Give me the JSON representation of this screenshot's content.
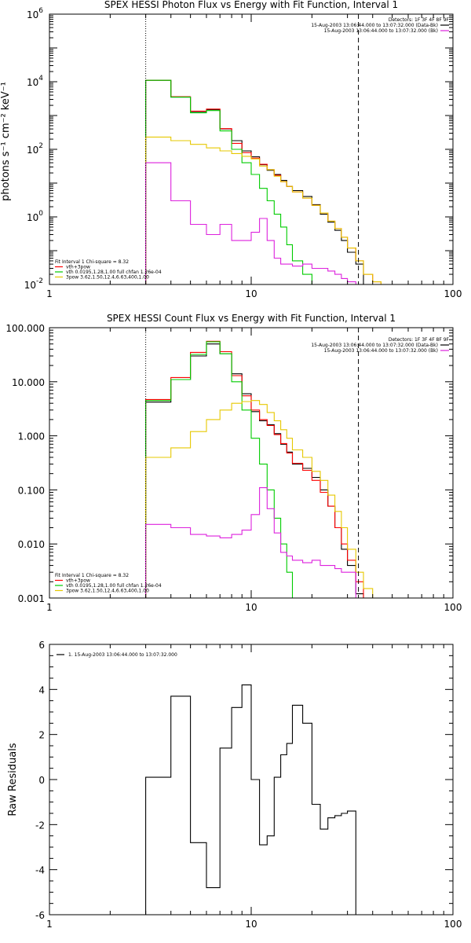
{
  "chart_data": [
    {
      "type": "line",
      "title": "SPEX HESSI Photon Flux vs Energy with Fit Function, Interval 1",
      "ylabel": "photons s⁻¹ cm⁻² keV⁻¹",
      "xlabel": "",
      "x_scale": "log",
      "y_scale": "log",
      "xlim": [
        1,
        100
      ],
      "ylim": [
        0.01,
        1000000
      ],
      "x_ticks": [
        "1",
        "10",
        "100"
      ],
      "y_ticks": [
        {
          "value": 0.01,
          "base": "10",
          "exp": "-2"
        },
        {
          "value": 1,
          "base": "10",
          "exp": "0"
        },
        {
          "value": 100,
          "base": "10",
          "exp": "2"
        },
        {
          "value": 10000,
          "base": "10",
          "exp": "4"
        },
        {
          "value": 1000000,
          "base": "10",
          "exp": "6"
        }
      ],
      "vlines": [
        {
          "x": 3,
          "style": "dotted"
        },
        {
          "x": 34,
          "style": "dashed"
        }
      ],
      "header_text": [
        "Detectors: 1F 3F 4F 8F 9F",
        "15-Aug-2003 13:06:44.000 to 13:07:32.000 (Data-Bk)",
        "15-Aug-2003 13:06:44.000 to 13:07:32.000 (Bk)"
      ],
      "header_colors": [
        "#000000",
        "#000000",
        "#dd22dd"
      ],
      "legend_text": [
        "Fit Interval 1    Chi-square = 8.32",
        "vth+3pow",
        "vth 0.0195,1.28,1.00  full chfan 1.26e-04",
        "3pow 3.62,1.50,12.4,6.63,400,1.00"
      ],
      "legend_colors": [
        "#000000",
        "#ff0000",
        "#00cc00",
        "#e6c800"
      ],
      "edges": [
        3,
        4,
        5,
        6,
        7,
        8,
        9,
        10,
        11,
        12,
        13,
        14,
        15,
        16,
        18,
        20,
        22,
        24,
        26,
        28,
        30,
        33,
        36,
        40,
        44
      ],
      "series": [
        {
          "color": "#000000",
          "values": [
            11000,
            3500,
            1300,
            1500,
            400,
            180,
            90,
            60,
            35,
            24,
            18,
            12,
            8,
            6,
            4,
            2.3,
            1.2,
            0.7,
            0.4,
            0.2,
            0.09,
            0.04,
            null,
            null
          ]
        },
        {
          "color": "#ff0000",
          "values": [
            11000,
            3600,
            1350,
            1550,
            410,
            150,
            80,
            55,
            36,
            25,
            17,
            11,
            8,
            5.5,
            3.6,
            2.2,
            1.3,
            0.75,
            0.45,
            0.25,
            0.12,
            0.05,
            0.02,
            0.012
          ]
        },
        {
          "color": "#00cc00",
          "values": [
            11000,
            3500,
            1200,
            1400,
            350,
            100,
            40,
            18,
            7,
            3,
            1.2,
            0.5,
            0.15,
            0.05,
            0.02,
            null,
            null,
            null,
            null,
            null,
            null,
            null,
            null,
            null
          ]
        },
        {
          "color": "#e6c800",
          "values": [
            230,
            180,
            140,
            110,
            90,
            75,
            62,
            52,
            32,
            25,
            16,
            11,
            8,
            5.5,
            3.6,
            2.2,
            1.3,
            0.75,
            0.45,
            0.25,
            0.12,
            0.05,
            0.02,
            0.012
          ]
        },
        {
          "color": "#dd22dd",
          "values": [
            40,
            3,
            0.6,
            0.3,
            0.6,
            0.2,
            0.2,
            0.35,
            0.9,
            0.2,
            0.06,
            0.04,
            0.04,
            0.035,
            0.04,
            0.03,
            0.03,
            0.025,
            0.02,
            0.015,
            0.012,
            null,
            null,
            null
          ]
        }
      ]
    },
    {
      "type": "line",
      "title": "SPEX HESSI Count Flux vs Energy with Fit Function, Interval 1",
      "ylabel": "",
      "xlabel": "",
      "x_scale": "log",
      "y_scale": "log",
      "xlim": [
        1,
        100
      ],
      "ylim": [
        0.001,
        100
      ],
      "x_ticks": [
        "1",
        "10",
        "100"
      ],
      "y_ticks": [
        {
          "value": 0.001,
          "label": "0.001"
        },
        {
          "value": 0.01,
          "label": "0.010"
        },
        {
          "value": 0.1,
          "label": "0.100"
        },
        {
          "value": 1,
          "label": "1.000"
        },
        {
          "value": 10,
          "label": "10.000"
        },
        {
          "value": 100,
          "label": "100.000"
        }
      ],
      "vlines": [
        {
          "x": 3,
          "style": "dotted"
        },
        {
          "x": 34,
          "style": "dashed"
        }
      ],
      "header_text": [
        "Detectors: 1F 3F 4F 8F 9F",
        "15-Aug-2003 13:06:44.000 to 13:07:32.000 (Data-Bk)",
        "15-Aug-2003 13:06:44.000 to 13:07:32.000 (Bk)"
      ],
      "header_colors": [
        "#000000",
        "#000000",
        "#dd22dd"
      ],
      "legend_text": [
        "Fit Interval 1    Chi-square = 8.32",
        "vth+3pow",
        "vth 0.0195,1.28,1.00  full chfan 1.26e-04",
        "3pow 3.62,1.50,12.4,6.63,400,1.00"
      ],
      "legend_colors": [
        "#000000",
        "#ff0000",
        "#00cc00",
        "#e6c800"
      ],
      "edges": [
        3,
        4,
        5,
        6,
        7,
        8,
        9,
        10,
        11,
        12,
        13,
        14,
        15,
        16,
        18,
        20,
        22,
        24,
        26,
        28,
        30,
        33,
        36,
        40,
        44
      ],
      "series": [
        {
          "color": "#000000",
          "values": [
            4.2,
            11,
            30,
            50,
            33,
            14,
            6,
            2.8,
            1.9,
            1.6,
            1.1,
            0.7,
            0.5,
            0.3,
            0.25,
            0.17,
            0.1,
            0.05,
            0.02,
            0.008,
            0.004,
            0.0012,
            null,
            null
          ]
        },
        {
          "color": "#ff0000",
          "values": [
            4.7,
            12,
            35,
            56,
            36,
            13,
            5.5,
            3,
            2,
            1.55,
            1.05,
            0.72,
            0.48,
            0.31,
            0.23,
            0.15,
            0.09,
            0.05,
            0.02,
            0.01,
            0.005,
            0.002,
            0.001,
            null
          ]
        },
        {
          "color": "#00cc00",
          "values": [
            4.5,
            11,
            32,
            55,
            33,
            10,
            3,
            0.9,
            0.3,
            0.1,
            0.03,
            0.01,
            0.003,
            0.001,
            null,
            null,
            null,
            null,
            null,
            null,
            null,
            null,
            null,
            null
          ]
        },
        {
          "color": "#e6c800",
          "values": [
            0.4,
            0.6,
            1.2,
            2,
            3,
            4,
            4.3,
            4.5,
            3.8,
            2.7,
            1.9,
            1.3,
            0.9,
            0.55,
            0.4,
            0.22,
            0.15,
            0.08,
            0.04,
            0.02,
            0.008,
            0.003,
            0.0015,
            null
          ]
        },
        {
          "color": "#dd22dd",
          "values": [
            0.023,
            0.02,
            0.015,
            0.014,
            0.013,
            0.015,
            0.018,
            0.035,
            0.11,
            0.045,
            0.016,
            0.007,
            0.006,
            0.005,
            0.0045,
            0.005,
            0.004,
            0.004,
            0.0035,
            0.003,
            0.003,
            null,
            null,
            null
          ]
        }
      ]
    },
    {
      "type": "line",
      "title": "",
      "ylabel": "Raw Residuals",
      "xlabel": "",
      "x_scale": "log",
      "y_scale": "linear",
      "xlim": [
        1,
        100
      ],
      "ylim": [
        -6,
        6
      ],
      "x_ticks": [
        "1",
        "10",
        "100"
      ],
      "y_ticks": [
        {
          "value": -6,
          "label": "-6"
        },
        {
          "value": -4,
          "label": "-4"
        },
        {
          "value": -2,
          "label": "-2"
        },
        {
          "value": 0,
          "label": "0"
        },
        {
          "value": 2,
          "label": "2"
        },
        {
          "value": 4,
          "label": "4"
        },
        {
          "value": 6,
          "label": "6"
        }
      ],
      "legend_text": [
        "1. 15-Aug-2003 13:06:44.000 to 13:07:32.000"
      ],
      "legend_colors": [
        "#000000"
      ],
      "edges": [
        3,
        4,
        5,
        6,
        7,
        8,
        9,
        10,
        11,
        12,
        13,
        14,
        15,
        16,
        18,
        20,
        22,
        24,
        26,
        28,
        30,
        33
      ],
      "series": [
        {
          "color": "#000000",
          "values": [
            0.1,
            3.7,
            -2.8,
            -4.8,
            1.4,
            3.2,
            4.2,
            0,
            -2.9,
            -2.5,
            0.1,
            1.1,
            1.6,
            3.3,
            2.5,
            -1.1,
            -2.2,
            -1.7,
            -1.6,
            -1.5,
            -1.4
          ]
        }
      ]
    }
  ]
}
